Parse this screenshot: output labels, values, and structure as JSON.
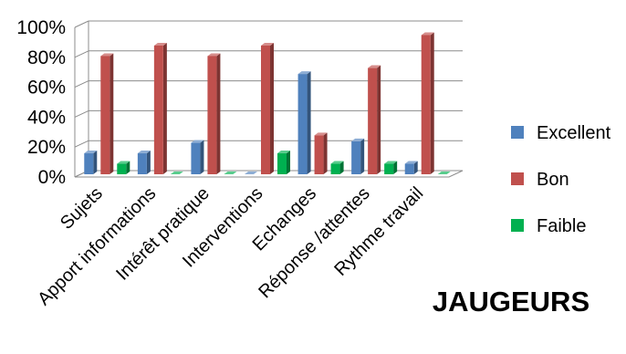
{
  "chart_data": {
    "type": "bar",
    "title": "JAUGEURS",
    "categories": [
      "Sujets",
      "Apport informations",
      "Intérêt pratique",
      "Interventions",
      "Echanges",
      "Réponse /attentes",
      "Rythme travail"
    ],
    "series": [
      {
        "name": "Excellent",
        "color": "#4f81bd",
        "values": [
          14,
          14,
          21,
          0,
          67,
          22,
          7
        ]
      },
      {
        "name": "Bon",
        "color": "#c0504d",
        "values": [
          79,
          86,
          79,
          86,
          26,
          71,
          93
        ]
      },
      {
        "name": "Faible",
        "color": "#00b050",
        "values": [
          7,
          0,
          0,
          14,
          7,
          7,
          0
        ]
      }
    ],
    "yticks": [
      "0%",
      "20%",
      "40%",
      "60%",
      "80%",
      "100%"
    ],
    "ylim": [
      0,
      100
    ],
    "unit": "%",
    "grid": true,
    "legend": "right",
    "style": "3d-clustered"
  }
}
